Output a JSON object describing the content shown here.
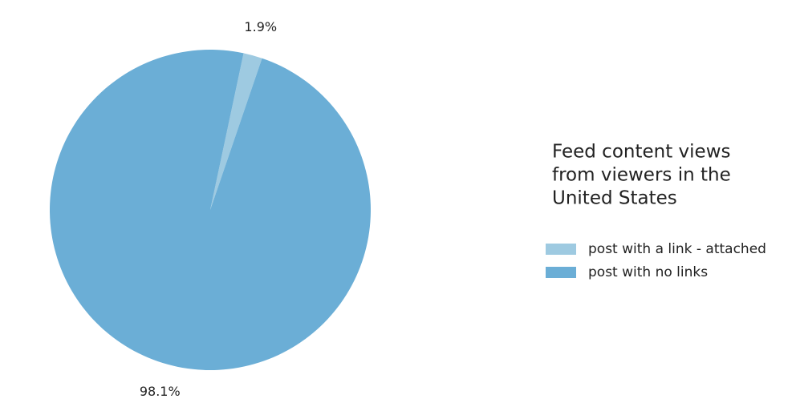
{
  "chart_data": {
    "type": "pie",
    "legend_title": [
      "Feed content views",
      "from viewers in the",
      "United States"
    ],
    "categories": [
      "post with a link - attached",
      "post with no links"
    ],
    "values": [
      1.9,
      98.1
    ],
    "value_labels": [
      "1.9%",
      "98.1%"
    ],
    "colors": [
      "#9ecae1",
      "#6baed6"
    ],
    "legend": "right"
  }
}
